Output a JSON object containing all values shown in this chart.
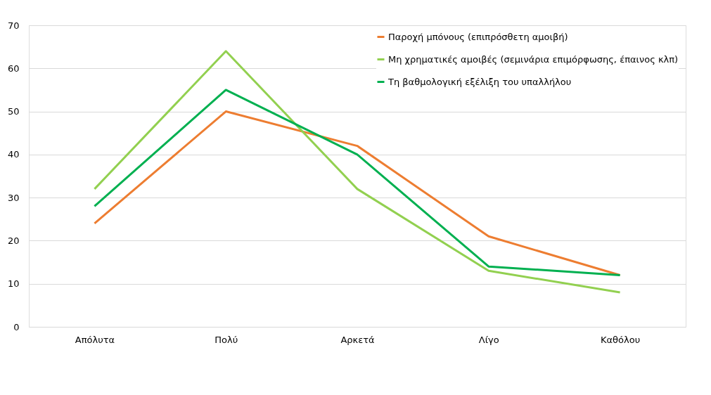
{
  "chart_data": {
    "type": "line",
    "categories": [
      "Απόλυτα",
      "Πολύ",
      "Αρκετά",
      "Λίγο",
      "Καθόλου"
    ],
    "series": [
      {
        "name": "Παροχή μπόνους (επιπρόσθετη αμοιβή)",
        "color": "#ed7d31",
        "values": [
          24,
          50,
          42,
          21,
          12
        ]
      },
      {
        "name": "Μη χρηματικές αμοιβές (σεμινάρια επιμόρφωσης, έπαινος κλπ)",
        "color": "#92d050",
        "values": [
          32,
          64,
          32,
          13,
          8
        ]
      },
      {
        "name": "Τη βαθμολογική εξέλιξη του υπαλλήλου",
        "color": "#00b050",
        "values": [
          28,
          55,
          40,
          14,
          12
        ]
      }
    ],
    "ylim": [
      0,
      70
    ],
    "yticks": [
      0,
      10,
      20,
      30,
      40,
      50,
      60,
      70
    ],
    "grid": "y",
    "legend": "top right",
    "marker": "none",
    "line_style": "solid"
  }
}
